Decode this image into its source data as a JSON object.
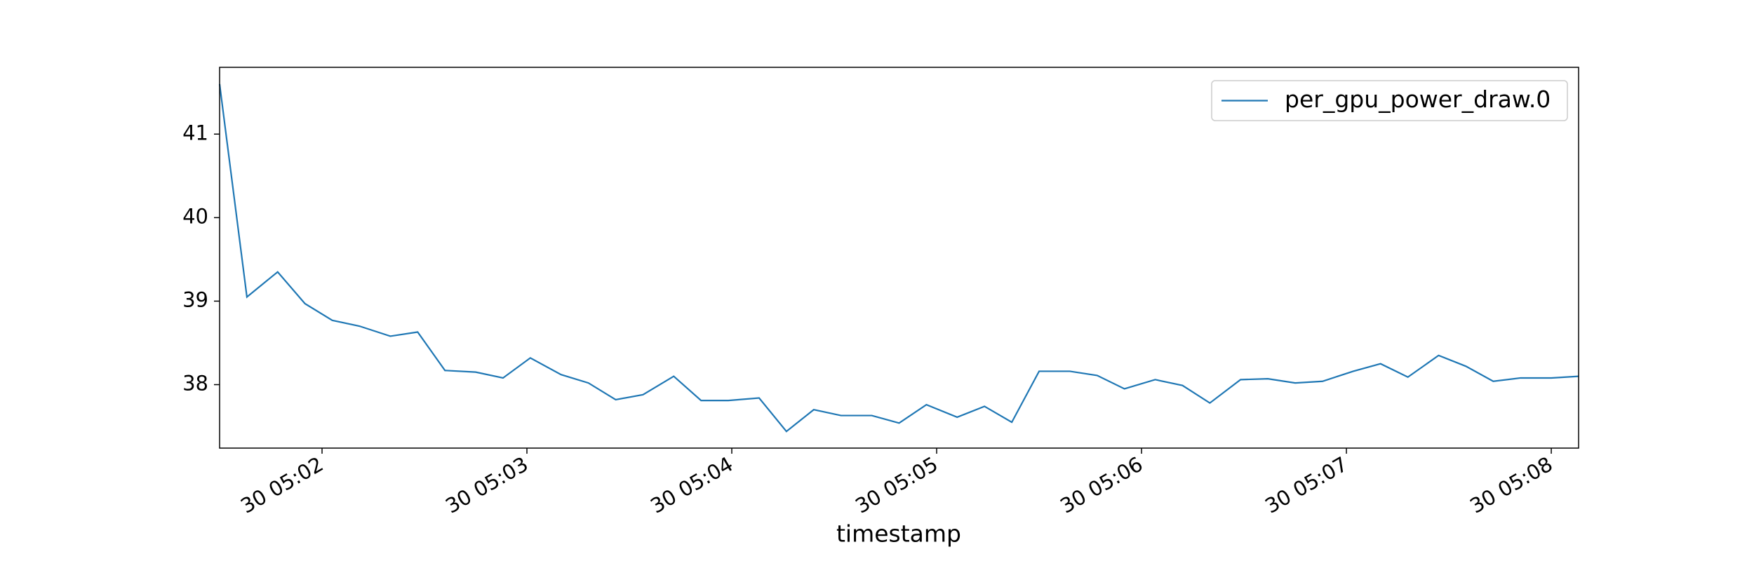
{
  "chart_data": {
    "type": "line",
    "x_label": "timestamp",
    "x": [
      "30 05:01:30",
      "30 05:01:38",
      "30 05:01:47",
      "30 05:01:55",
      "30 05:02:03",
      "30 05:02:11",
      "30 05:02:20",
      "30 05:02:28",
      "30 05:02:36",
      "30 05:02:45",
      "30 05:02:53",
      "30 05:03:01",
      "30 05:03:10",
      "30 05:03:18",
      "30 05:03:26",
      "30 05:03:34",
      "30 05:03:43",
      "30 05:03:51",
      "30 05:03:59",
      "30 05:04:08",
      "30 05:04:16",
      "30 05:04:24",
      "30 05:04:32",
      "30 05:04:41",
      "30 05:04:49",
      "30 05:04:57",
      "30 05:05:06",
      "30 05:05:14",
      "30 05:05:22",
      "30 05:05:30",
      "30 05:05:39",
      "30 05:05:47",
      "30 05:05:55",
      "30 05:06:04",
      "30 05:06:12",
      "30 05:06:20",
      "30 05:06:29",
      "30 05:06:37",
      "30 05:06:45",
      "30 05:06:53",
      "30 05:07:02",
      "30 05:07:10",
      "30 05:07:18",
      "30 05:07:27",
      "30 05:07:35",
      "30 05:07:43",
      "30 05:07:51",
      "30 05:08:00",
      "30 05:08:08"
    ],
    "series": [
      {
        "name": "per_gpu_power_draw.0",
        "color": "#1f77b4",
        "values": [
          41.6,
          39.05,
          39.35,
          38.97,
          38.77,
          38.7,
          38.58,
          38.63,
          38.17,
          38.15,
          38.08,
          38.32,
          38.12,
          38.02,
          37.82,
          37.88,
          38.1,
          37.81,
          37.81,
          37.84,
          37.44,
          37.7,
          37.63,
          37.63,
          37.54,
          37.76,
          37.61,
          37.74,
          37.55,
          38.16,
          38.16,
          38.11,
          37.95,
          38.06,
          37.99,
          37.78,
          38.06,
          38.07,
          38.02,
          38.04,
          38.16,
          38.25,
          38.09,
          38.35,
          38.22,
          38.04,
          38.08,
          38.08,
          38.1
        ]
      }
    ],
    "xlim": [
      "30 05:01:30",
      "30 05:08:08"
    ],
    "xticks": [
      "30 05:02",
      "30 05:03",
      "30 05:04",
      "30 05:05",
      "30 05:06",
      "30 05:07",
      "30 05:08"
    ],
    "ylim": [
      37.24,
      41.8
    ],
    "yticks": [
      38,
      39,
      40,
      41
    ],
    "legend": "upper right",
    "grid": false
  }
}
